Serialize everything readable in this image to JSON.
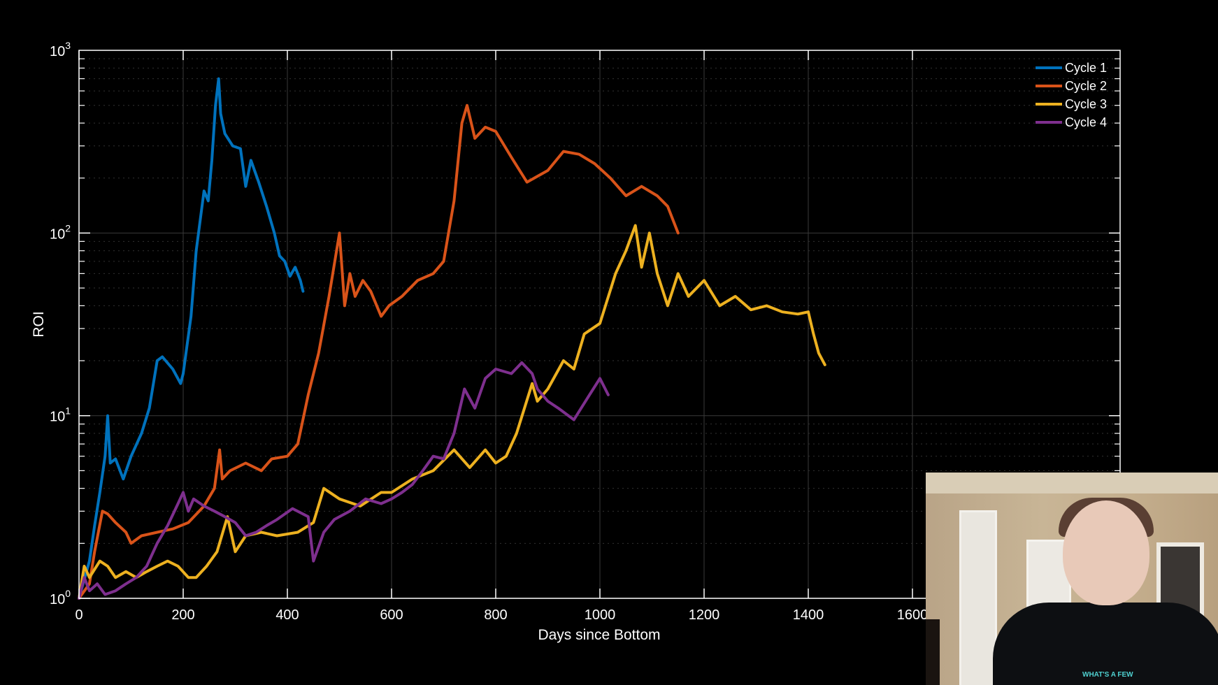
{
  "chart_data": {
    "type": "line",
    "title": "",
    "xlabel": "Days since Bottom",
    "ylabel": "ROI",
    "xlim": [
      0,
      2000
    ],
    "ylim": [
      1,
      1000
    ],
    "yscale": "log",
    "x_ticks": [
      0,
      200,
      400,
      600,
      800,
      1000,
      1200,
      1400,
      1600
    ],
    "y_ticks": [
      "10^0",
      "10^1",
      "10^2",
      "10^3"
    ],
    "grid": true,
    "legend_position": "upper right",
    "series": [
      {
        "name": "Cycle 1",
        "color": "#0072BD",
        "x": [
          0,
          20,
          30,
          40,
          50,
          55,
          60,
          70,
          85,
          100,
          120,
          135,
          150,
          160,
          180,
          195,
          200,
          215,
          225,
          240,
          248,
          255,
          262,
          268,
          272,
          280,
          295,
          310,
          320,
          330,
          345,
          360,
          375,
          385,
          395,
          405,
          415,
          425,
          430
        ],
        "y": [
          1.0,
          1.6,
          2.5,
          3.8,
          6.0,
          10.0,
          5.5,
          5.8,
          4.5,
          6.0,
          8.0,
          11.0,
          20.0,
          21.0,
          18.0,
          15.0,
          17.0,
          35.0,
          80.0,
          170.0,
          150.0,
          250.0,
          500.0,
          700.0,
          450.0,
          350.0,
          300.0,
          290.0,
          180.0,
          250.0,
          190.0,
          140.0,
          100.0,
          75.0,
          70.0,
          58.0,
          65.0,
          55.0,
          48.0
        ]
      },
      {
        "name": "Cycle 2",
        "color": "#D95319",
        "x": [
          0,
          20,
          30,
          45,
          55,
          70,
          90,
          100,
          120,
          150,
          180,
          210,
          240,
          260,
          270,
          275,
          290,
          320,
          350,
          370,
          400,
          420,
          440,
          460,
          480,
          500,
          510,
          520,
          530,
          545,
          560,
          580,
          595,
          620,
          650,
          680,
          700,
          720,
          735,
          745,
          760,
          780,
          800,
          830,
          860,
          900,
          930,
          960,
          990,
          1020,
          1050,
          1080,
          1110,
          1130,
          1150
        ],
        "y": [
          1.0,
          1.2,
          1.8,
          3.0,
          2.9,
          2.6,
          2.3,
          2.0,
          2.2,
          2.3,
          2.4,
          2.6,
          3.2,
          4.0,
          6.5,
          4.5,
          5.0,
          5.5,
          5.0,
          5.8,
          6.0,
          7.0,
          13.0,
          22.0,
          45.0,
          100.0,
          40.0,
          60.0,
          45.0,
          55.0,
          48.0,
          35.0,
          40.0,
          45.0,
          55.0,
          60.0,
          70.0,
          150.0,
          400.0,
          500.0,
          330.0,
          380.0,
          360.0,
          260.0,
          190.0,
          220.0,
          280.0,
          270.0,
          240.0,
          200.0,
          160.0,
          180.0,
          160.0,
          140.0,
          100.0
        ]
      },
      {
        "name": "Cycle 3",
        "color": "#EDB120",
        "x": [
          0,
          10,
          20,
          40,
          55,
          70,
          90,
          110,
          130,
          150,
          170,
          190,
          210,
          225,
          245,
          265,
          285,
          300,
          320,
          350,
          380,
          420,
          450,
          470,
          500,
          540,
          580,
          600,
          640,
          680,
          720,
          750,
          780,
          800,
          820,
          840,
          870,
          880,
          900,
          930,
          950,
          970,
          1000,
          1030,
          1050,
          1068,
          1080,
          1095,
          1110,
          1130,
          1150,
          1170,
          1200,
          1230,
          1260,
          1290,
          1320,
          1350,
          1380,
          1400,
          1410,
          1420,
          1432
        ],
        "y": [
          1.0,
          1.5,
          1.3,
          1.6,
          1.5,
          1.3,
          1.4,
          1.3,
          1.4,
          1.5,
          1.6,
          1.5,
          1.3,
          1.3,
          1.5,
          1.8,
          2.8,
          1.8,
          2.2,
          2.3,
          2.2,
          2.3,
          2.6,
          4.0,
          3.5,
          3.2,
          3.8,
          3.8,
          4.5,
          5.0,
          6.5,
          5.2,
          6.5,
          5.5,
          6.0,
          8.0,
          15.0,
          12.0,
          14.0,
          20.0,
          18.0,
          28.0,
          32.0,
          60.0,
          80.0,
          110.0,
          65.0,
          100.0,
          60.0,
          40.0,
          60.0,
          45.0,
          55.0,
          40.0,
          45.0,
          38.0,
          40.0,
          37.0,
          36.0,
          37.0,
          28.0,
          22.0,
          19.0
        ]
      },
      {
        "name": "Cycle 4",
        "color": "#7E2F8E",
        "x": [
          0,
          10,
          20,
          35,
          50,
          70,
          90,
          110,
          130,
          150,
          170,
          190,
          200,
          210,
          220,
          240,
          260,
          280,
          300,
          320,
          340,
          360,
          380,
          410,
          440,
          450,
          470,
          490,
          520,
          550,
          580,
          600,
          620,
          640,
          660,
          680,
          700,
          720,
          740,
          760,
          780,
          800,
          830,
          850,
          870,
          880,
          900,
          920,
          950,
          980,
          1000,
          1016
        ],
        "y": [
          1.0,
          1.3,
          1.1,
          1.2,
          1.05,
          1.1,
          1.2,
          1.3,
          1.5,
          2.0,
          2.5,
          3.3,
          3.8,
          3.0,
          3.5,
          3.2,
          3.0,
          2.8,
          2.6,
          2.2,
          2.3,
          2.5,
          2.7,
          3.1,
          2.8,
          1.6,
          2.3,
          2.7,
          3.0,
          3.5,
          3.3,
          3.5,
          3.8,
          4.2,
          5.0,
          6.0,
          5.8,
          8.0,
          14.0,
          11.0,
          16.0,
          18.0,
          17.0,
          19.5,
          17.0,
          14.0,
          12.0,
          11.0,
          9.5,
          13.0,
          16.0,
          13.0
        ]
      }
    ]
  },
  "axes": {
    "xlabel": "Days since Bottom",
    "ylabel": "ROI",
    "x_tick_labels": [
      "0",
      "200",
      "400",
      "600",
      "800",
      "1000",
      "1200",
      "1400",
      "1600"
    ],
    "y_tick_bases": [
      "10",
      "10",
      "10",
      "10"
    ],
    "y_tick_exps": [
      "0",
      "1",
      "2",
      "3"
    ]
  },
  "legend": {
    "items": [
      {
        "label": "Cycle 1",
        "color": "#0072BD"
      },
      {
        "label": "Cycle 2",
        "color": "#D95319"
      },
      {
        "label": "Cycle 3",
        "color": "#EDB120"
      },
      {
        "label": "Cycle 4",
        "color": "#7E2F8E"
      }
    ]
  },
  "webcam": {
    "shirt_text": "WHAT'S A FEW"
  }
}
